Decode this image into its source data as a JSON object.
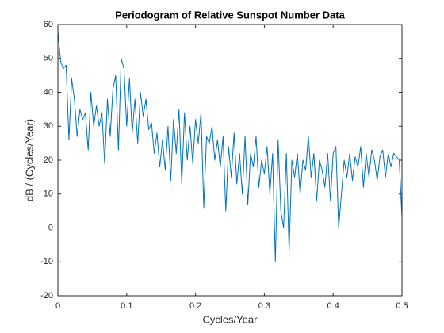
{
  "chart_data": {
    "type": "line",
    "title": "Periodogram of Relative Sunspot Number Data",
    "xlabel": "Cycles/Year",
    "ylabel": "dB / (Cycles/Year)",
    "xlim": [
      0,
      0.5
    ],
    "xticks": [
      0,
      0.1,
      0.2,
      0.3,
      0.4,
      0.5
    ],
    "ylim": [
      -20,
      60
    ],
    "yticks": [
      -20,
      -10,
      0,
      10,
      20,
      30,
      40,
      50,
      60
    ],
    "grid": false,
    "x": [
      0,
      0.004,
      0.008,
      0.012,
      0.016,
      0.02,
      0.024,
      0.028,
      0.032,
      0.036,
      0.04,
      0.044,
      0.048,
      0.052,
      0.056,
      0.06,
      0.064,
      0.068,
      0.072,
      0.076,
      0.08,
      0.084,
      0.088,
      0.092,
      0.096,
      0.1,
      0.104,
      0.108,
      0.112,
      0.116,
      0.12,
      0.124,
      0.128,
      0.132,
      0.136,
      0.14,
      0.144,
      0.148,
      0.152,
      0.156,
      0.16,
      0.164,
      0.168,
      0.172,
      0.176,
      0.18,
      0.184,
      0.188,
      0.192,
      0.196,
      0.2,
      0.204,
      0.208,
      0.212,
      0.216,
      0.22,
      0.224,
      0.228,
      0.232,
      0.236,
      0.24,
      0.244,
      0.248,
      0.252,
      0.256,
      0.26,
      0.264,
      0.268,
      0.272,
      0.276,
      0.28,
      0.284,
      0.288,
      0.292,
      0.296,
      0.3,
      0.304,
      0.308,
      0.312,
      0.316,
      0.32,
      0.324,
      0.328,
      0.332,
      0.336,
      0.34,
      0.344,
      0.348,
      0.352,
      0.356,
      0.36,
      0.364,
      0.368,
      0.372,
      0.376,
      0.38,
      0.384,
      0.388,
      0.392,
      0.396,
      0.4,
      0.404,
      0.408,
      0.412,
      0.416,
      0.42,
      0.424,
      0.428,
      0.432,
      0.436,
      0.44,
      0.444,
      0.448,
      0.452,
      0.456,
      0.46,
      0.464,
      0.468,
      0.472,
      0.476,
      0.48,
      0.484,
      0.488,
      0.492,
      0.496,
      0.5
    ],
    "series": [
      {
        "color": "#0072bd",
        "values": [
          58,
          49,
          47,
          48,
          26,
          44,
          38,
          27,
          35,
          32,
          34,
          23,
          40,
          30,
          36,
          30,
          34,
          19,
          38,
          27,
          41,
          45,
          23,
          50,
          47,
          30,
          44,
          28,
          38,
          25,
          40,
          33,
          38,
          29,
          31,
          22,
          28,
          18,
          26,
          17,
          30,
          14,
          32,
          22,
          35,
          13,
          34,
          20,
          30,
          19,
          32,
          25,
          34,
          6,
          27,
          25,
          30,
          20,
          26,
          18,
          27,
          5,
          24,
          15,
          28,
          13,
          22,
          10,
          27,
          7,
          22,
          18,
          27,
          12,
          20,
          16,
          24,
          10,
          22,
          -10,
          26,
          5,
          0,
          22,
          -7,
          20,
          15,
          22,
          10,
          20,
          17,
          27,
          15,
          22,
          8,
          20,
          17,
          12,
          22,
          8,
          22,
          24,
          0,
          10,
          20,
          15,
          22,
          14,
          21,
          18,
          24,
          12,
          22,
          15,
          23,
          20,
          14,
          21,
          23,
          15,
          22,
          18,
          22,
          21,
          20,
          3
        ]
      }
    ]
  }
}
